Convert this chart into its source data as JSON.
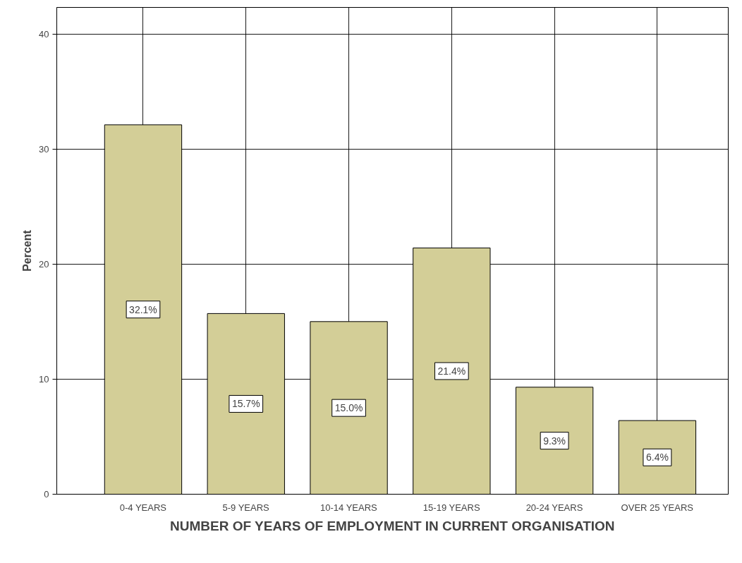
{
  "chart_data": {
    "type": "bar",
    "xlabel": "NUMBER OF YEARS OF EMPLOYMENT IN CURRENT ORGANISATION",
    "ylabel": "Percent",
    "categories": [
      "0-4 YEARS",
      "5-9 YEARS",
      "10-14 YEARS",
      "15-19 YEARS",
      "20-24 YEARS",
      "OVER 25 YEARS"
    ],
    "values": [
      32.1,
      15.7,
      15.0,
      21.4,
      9.3,
      6.4
    ],
    "value_labels": [
      "32.1%",
      "15.7%",
      "15.0%",
      "21.4%",
      "9.3%",
      "6.4%"
    ],
    "color": "#d3ce97",
    "ylim": [
      0,
      42.3
    ],
    "yticks": [
      0,
      10,
      20,
      30,
      40
    ],
    "grid": true
  }
}
